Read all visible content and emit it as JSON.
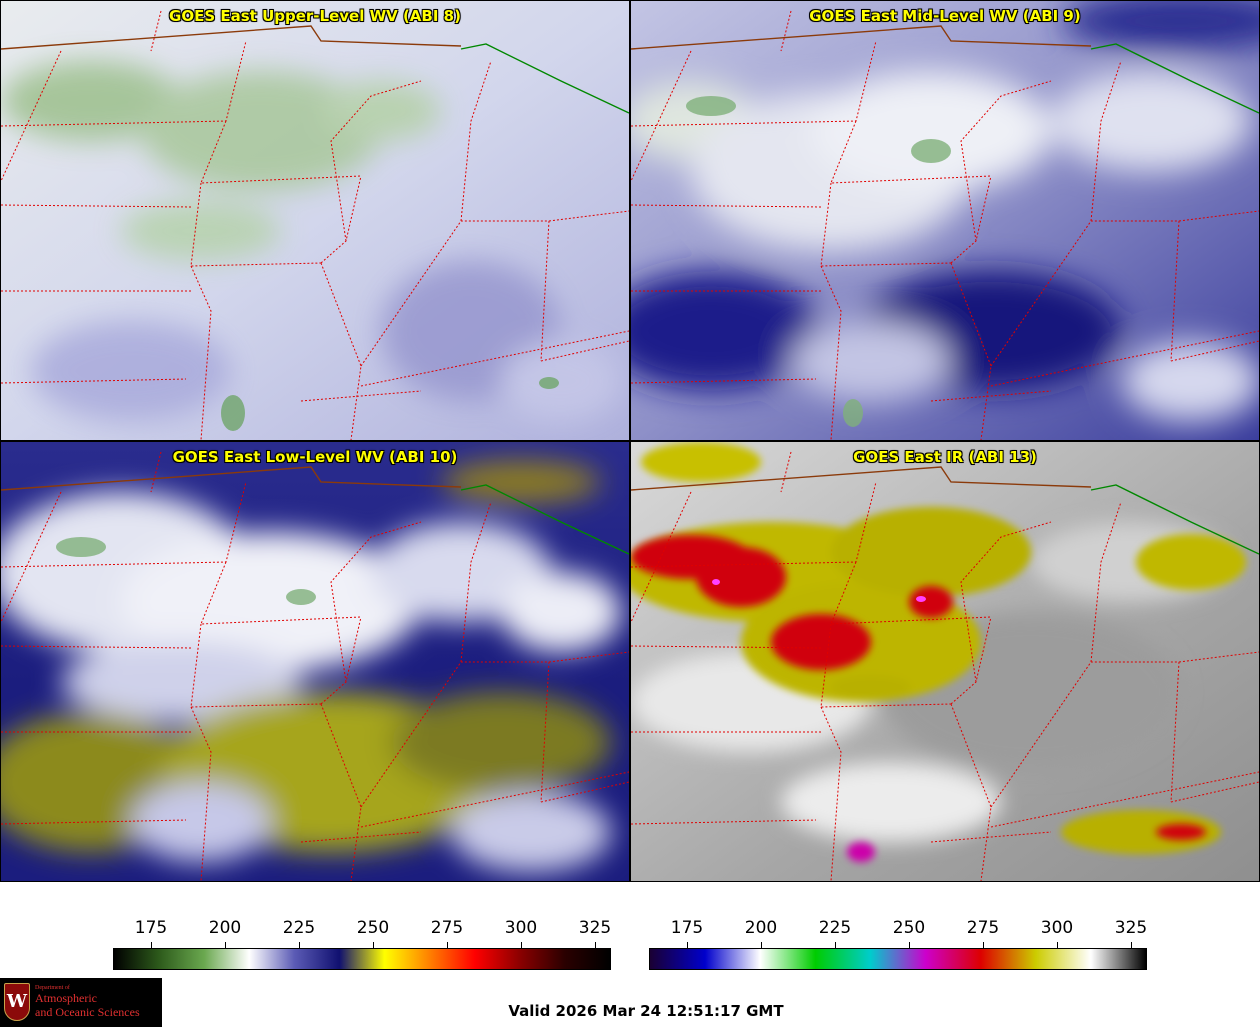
{
  "panels": [
    {
      "id": "p1",
      "title": "GOES East Upper-Level WV (ABI 8)"
    },
    {
      "id": "p2",
      "title": "GOES East Mid-Level WV (ABI 9)"
    },
    {
      "id": "p3",
      "title": "GOES East Low-Level WV (ABI 10)"
    },
    {
      "id": "p4",
      "title": "GOES East IR (ABI 13)"
    }
  ],
  "colorbars": {
    "wv": {
      "ticks": [
        "175",
        "200",
        "225",
        "250",
        "275",
        "300",
        "325"
      ],
      "colors": [
        "#000000",
        "#2d5a1b",
        "#6aa84f",
        "#ffffff",
        "#5b5bb5",
        "#101070",
        "#ffff00",
        "#ff8000",
        "#ff0000",
        "#8b0000",
        "#2a0000",
        "#000000"
      ]
    },
    "ir": {
      "ticks": [
        "175",
        "200",
        "225",
        "250",
        "275",
        "300",
        "325"
      ],
      "colors": [
        "#1a0033",
        "#0000cc",
        "#ffffff",
        "#00cc00",
        "#00cccc",
        "#cc00cc",
        "#dd0000",
        "#cccc00",
        "#ffffff",
        "#000000"
      ]
    }
  },
  "logo": {
    "dept": "Department of",
    "line1": "Atmospheric",
    "line2": "and Oceanic Sciences"
  },
  "valid_time": "Valid 2026 Mar 24 12:51:17 GMT"
}
